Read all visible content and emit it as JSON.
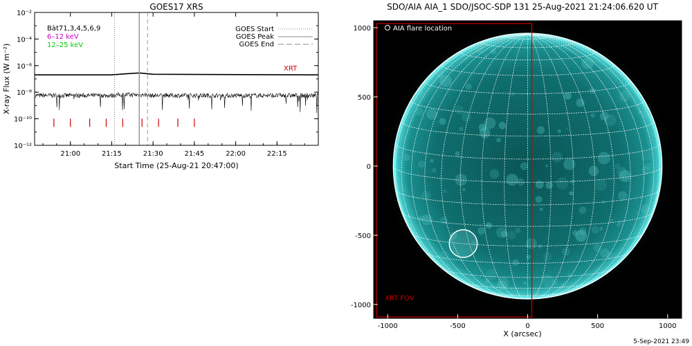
{
  "footer_timestamp": "5-Sep-2021 23:49",
  "chart_data": [
    {
      "type": "line",
      "title": "GOES17 XRS",
      "xlabel": "Start Time (25-Aug-21 20:47:00)",
      "ylabel": "X-ray Flux (W m⁻²)",
      "y_scale": "log",
      "ylim": [
        1e-12,
        0.01
      ],
      "y_ticks": [
        {
          "value": -12,
          "label": "10⁻¹²"
        },
        {
          "value": -10,
          "label": "10⁻¹⁰"
        },
        {
          "value": -8,
          "label": "10⁻⁸"
        },
        {
          "value": -6,
          "label": "10⁻⁶"
        },
        {
          "value": -4,
          "label": "10⁻⁴"
        },
        {
          "value": -2,
          "label": "10⁻²"
        }
      ],
      "xlim": [
        "20:47",
        "22:30"
      ],
      "x_ticks": [
        "21:00",
        "21:15",
        "21:30",
        "21:45",
        "22:00",
        "22:15"
      ],
      "info_lines": [
        {
          "text": "Bàt71,3,4,5,6,9",
          "color": "#000000"
        },
        {
          "text": "6–12 keV",
          "color": "#cc00cc"
        },
        {
          "text": "12–25 keV",
          "color": "#00cc00"
        }
      ],
      "legend": {
        "placement": "top-right",
        "entries": [
          {
            "label": "GOES Start",
            "style": "dotted"
          },
          {
            "label": "GOES Peak",
            "style": "solid"
          },
          {
            "label": "GOES End",
            "style": "dashed"
          }
        ]
      },
      "event_lines": [
        {
          "kind": "start",
          "time": "21:16"
        },
        {
          "kind": "peak",
          "time": "21:25"
        },
        {
          "kind": "end",
          "time": "21:28"
        }
      ],
      "series": [
        {
          "name": "XRT",
          "color": "#cc0000",
          "kind": "upper-flux",
          "x": [
            "20:47",
            "21:15",
            "21:20",
            "21:25",
            "21:30",
            "22:30"
          ],
          "log10_y": [
            -6.7,
            -6.7,
            -6.62,
            -6.55,
            -6.65,
            -6.7
          ]
        },
        {
          "kind": "lower-flux",
          "color": "#000000",
          "log10_mean": -8.25,
          "noise": 0.35
        }
      ],
      "xrt_times": [
        "20:54",
        "21:00",
        "21:07",
        "21:13",
        "21:19",
        "21:26",
        "21:32",
        "21:39",
        "21:45"
      ],
      "xrt_marker_log10": -10.3
    },
    {
      "type": "scatter",
      "title": "SDO/AIA AIA_1 SDO/JSOC-SDP 131 25-Aug-2021 21:24:06.620 UT",
      "xlabel": "X (arcsec)",
      "ylabel": "",
      "xlim": [
        -1100,
        1100
      ],
      "ylim": [
        -1100,
        1050
      ],
      "x_ticks": [
        -1000,
        -500,
        0,
        500,
        1000
      ],
      "y_ticks": [
        -1000,
        -500,
        0,
        500,
        1000
      ],
      "legend_label": "AIA flare location",
      "solar_radius_arcsec": 960,
      "flare_location": {
        "x": -460,
        "y": -560,
        "r": 100
      },
      "xrt_fov": {
        "label": "XRT FOV",
        "x0": -1080,
        "x1": 30,
        "y0": -1090,
        "y1": 1030,
        "color": "#cc0000"
      },
      "disk_color": "#0d6b6b"
    }
  ]
}
